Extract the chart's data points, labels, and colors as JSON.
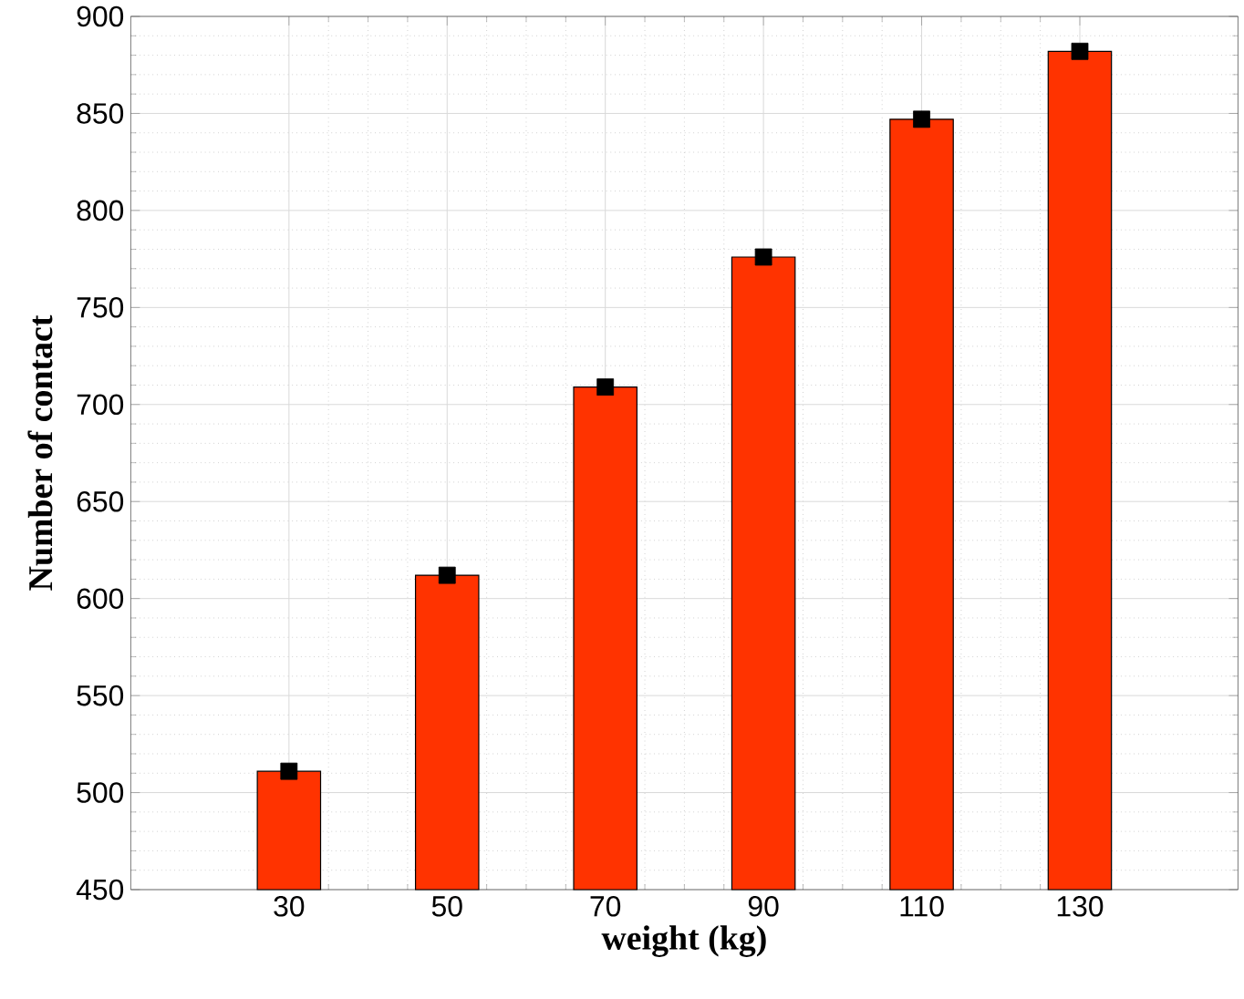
{
  "chart_data": {
    "type": "bar",
    "xlabel": "weight (kg)",
    "ylabel": "Number of contact",
    "x": [
      30,
      50,
      70,
      90,
      110,
      130
    ],
    "series": [
      {
        "color": "#ff3300",
        "values": [
          511,
          612,
          709,
          776,
          847,
          882
        ]
      },
      {
        "type": "scatter",
        "color": "#000000",
        "marker": "square",
        "values": [
          511,
          612,
          709,
          776,
          847,
          882
        ]
      }
    ],
    "xlim": [
      10,
      150
    ],
    "xticks": [
      30,
      50,
      70,
      90,
      110,
      130
    ],
    "ylim": [
      450,
      900
    ],
    "yticks": [
      450,
      500,
      550,
      600,
      650,
      700,
      750,
      800,
      850,
      900
    ],
    "grid": true
  }
}
